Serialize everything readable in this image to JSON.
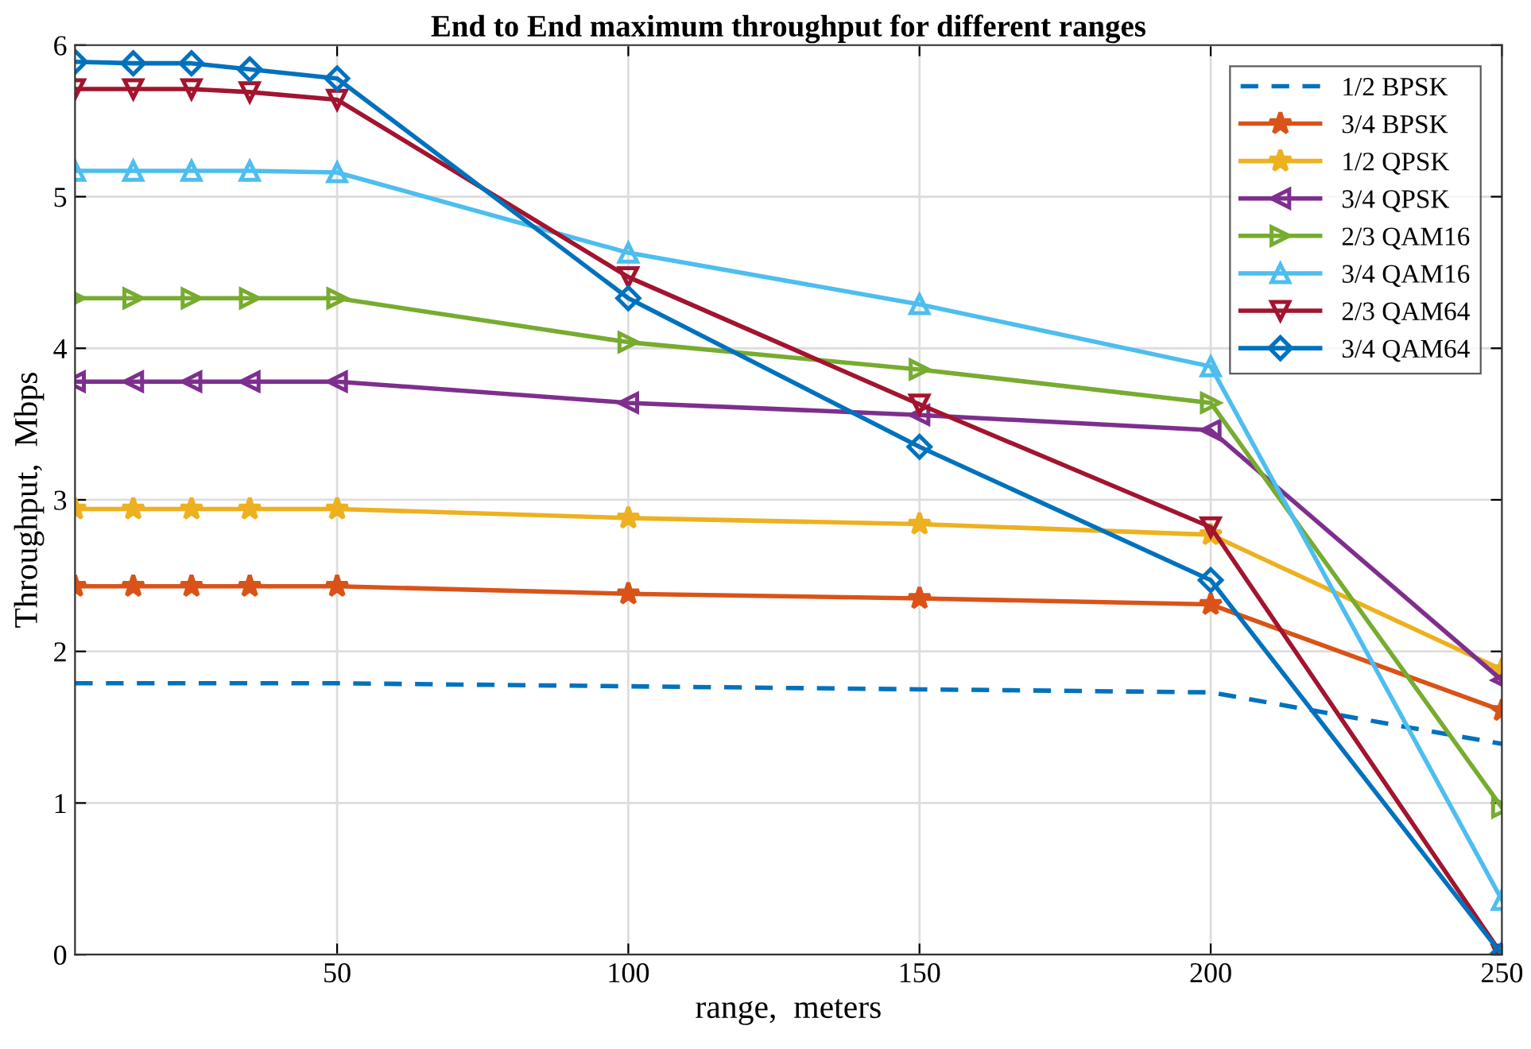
{
  "chart_data": {
    "type": "line",
    "title": "End to End maximum throughput for different ranges",
    "xlabel": "range,  meters",
    "ylabel": "Throughput,  Mbps",
    "x": [
      5,
      15,
      25,
      35,
      50,
      100,
      150,
      200,
      250
    ],
    "xlim": [
      5,
      250
    ],
    "xticks": [
      50,
      100,
      150,
      200,
      250
    ],
    "ylim": [
      0,
      6
    ],
    "yticks": [
      0,
      1,
      2,
      3,
      4,
      5,
      6
    ],
    "grid": true,
    "legend": "top right",
    "series": [
      {
        "name": "1/2 BPSK",
        "color": "#0072bd",
        "line_style": "dashed",
        "marker": "none",
        "values": [
          1.79,
          1.79,
          1.79,
          1.79,
          1.79,
          1.77,
          1.75,
          1.73,
          1.39
        ]
      },
      {
        "name": "3/4 BPSK",
        "color": "#d95319",
        "marker": "star",
        "values": [
          2.43,
          2.43,
          2.43,
          2.43,
          2.43,
          2.38,
          2.35,
          2.31,
          1.61
        ]
      },
      {
        "name": "1/2 QPSK",
        "color": "#edb120",
        "marker": "star",
        "values": [
          2.94,
          2.94,
          2.94,
          2.94,
          2.94,
          2.88,
          2.84,
          2.77,
          1.88
        ]
      },
      {
        "name": "3/4 QPSK",
        "color": "#7e2f8e",
        "marker": "triangle-left",
        "values": [
          3.78,
          3.78,
          3.78,
          3.78,
          3.78,
          3.64,
          3.56,
          3.46,
          1.81
        ]
      },
      {
        "name": "2/3 QAM16",
        "color": "#77ac30",
        "marker": "triangle-right",
        "values": [
          4.33,
          4.33,
          4.33,
          4.33,
          4.33,
          4.04,
          3.86,
          3.64,
          0.97
        ]
      },
      {
        "name": "3/4 QAM16",
        "color": "#4dbeee",
        "marker": "triangle",
        "values": [
          5.17,
          5.17,
          5.17,
          5.17,
          5.16,
          4.63,
          4.29,
          3.88,
          0.36
        ]
      },
      {
        "name": "2/3 QAM64",
        "color": "#a2142f",
        "marker": "triangle-down",
        "values": [
          5.71,
          5.71,
          5.71,
          5.69,
          5.64,
          4.47,
          3.63,
          2.82,
          0
        ]
      },
      {
        "name": "3/4 QAM64",
        "color": "#0072bd",
        "marker": "diamond",
        "values": [
          5.89,
          5.88,
          5.88,
          5.84,
          5.78,
          4.33,
          3.35,
          2.47,
          0
        ]
      }
    ]
  }
}
